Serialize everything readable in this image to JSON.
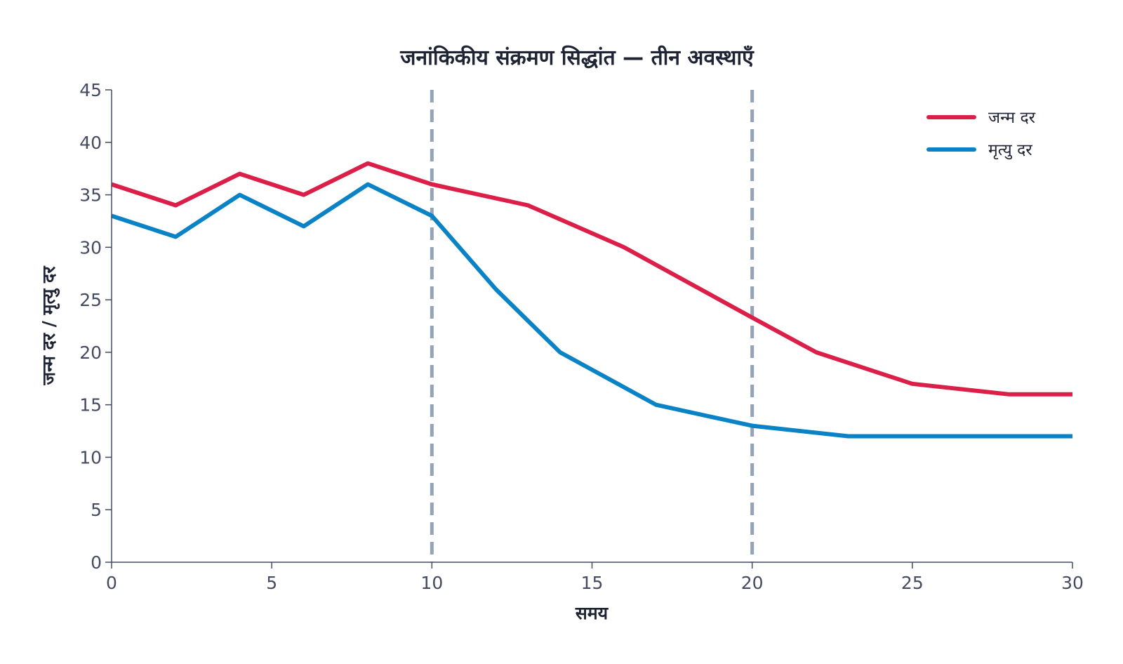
{
  "chart_data": {
    "type": "line",
    "title": "जनांकिकीय संक्रमण सिद्धांत — तीन अवस्थाएँ",
    "xlabel": "समय",
    "ylabel": "जन्म दर / मृत्यु दर",
    "xlim": [
      0,
      30
    ],
    "ylim": [
      0,
      45
    ],
    "xticks": [
      0,
      5,
      10,
      15,
      20,
      25,
      30
    ],
    "yticks": [
      0,
      5,
      10,
      15,
      20,
      25,
      30,
      35,
      40,
      45
    ],
    "grid": false,
    "legend": "top-right",
    "vlines": [
      {
        "x": 10,
        "color": "#94a3b8",
        "style": "dashed"
      },
      {
        "x": 20,
        "color": "#94a3b8",
        "style": "dashed"
      }
    ],
    "series": [
      {
        "name": "जन्म दर",
        "color": "#dc1f48",
        "x": [
          0,
          2,
          4,
          6,
          8,
          10,
          13,
          16,
          20,
          22,
          25,
          28,
          30
        ],
        "y": [
          36,
          34,
          37,
          35,
          38,
          36,
          34,
          30,
          23.3,
          20,
          17,
          16,
          16
        ]
      },
      {
        "name": "मृत्यु दर",
        "color": "#0a83c6",
        "x": [
          0,
          2,
          4,
          6,
          8,
          10,
          12,
          14,
          17,
          20,
          23,
          30
        ],
        "y": [
          33,
          31,
          35,
          32,
          36,
          33,
          26,
          20,
          15,
          13,
          12,
          12
        ]
      }
    ]
  }
}
